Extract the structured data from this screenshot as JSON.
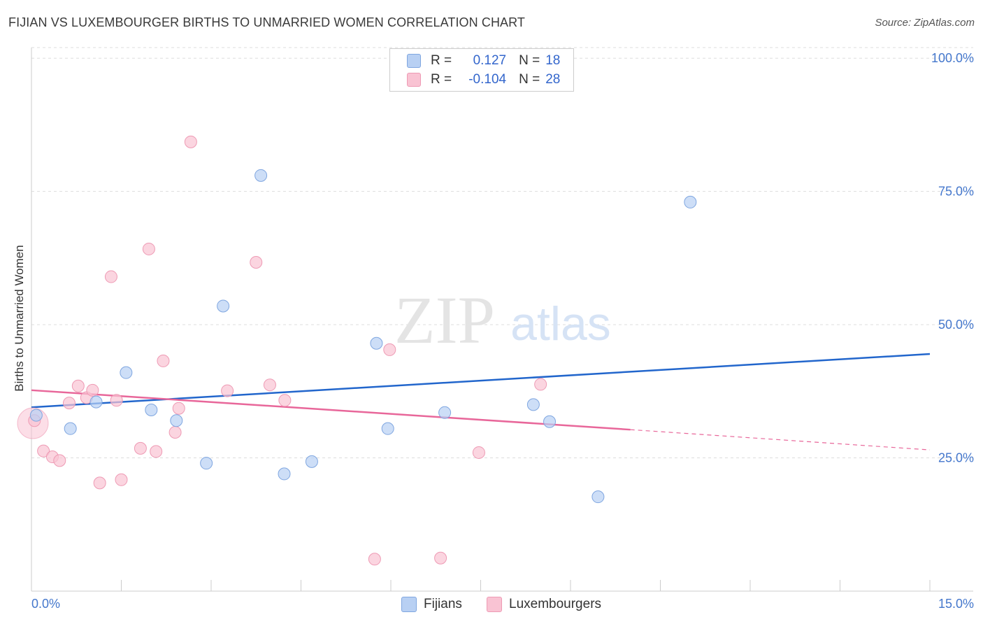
{
  "title": "FIJIAN VS LUXEMBOURGER BIRTHS TO UNMARRIED WOMEN CORRELATION CHART",
  "source": "Source: ZipAtlas.com",
  "watermark": {
    "zip": "ZIP",
    "atlas": "atlas"
  },
  "legend": {
    "r_label": "R =",
    "n_label": "N =",
    "fijians": {
      "r": "0.127",
      "n": "18"
    },
    "luxembourgers": {
      "r": "-0.104",
      "n": "28"
    }
  },
  "colors": {
    "fijians_fill": "#b8d0f3",
    "fijians_stroke": "#7fa6e0",
    "fijians_line": "#2266cc",
    "lux_fill": "#f9c3d3",
    "lux_stroke": "#ee9ab4",
    "lux_line": "#e8679a",
    "tick_text": "#4477cc"
  },
  "chart_data": {
    "type": "scatter",
    "title": "FIJIAN VS LUXEMBOURGER BIRTHS TO UNMARRIED WOMEN CORRELATION CHART",
    "xlabel": "",
    "ylabel": "Births to Unmarried Women",
    "xlim": [
      0,
      15
    ],
    "ylim": [
      0,
      102
    ],
    "x_tick_labels": [
      "0.0%",
      "15.0%"
    ],
    "y_ticks": [
      25,
      50,
      75,
      100
    ],
    "y_tick_labels": [
      "25.0%",
      "50.0%",
      "75.0%",
      "100.0%"
    ],
    "grid": true,
    "legend_position": "bottom-center",
    "series": [
      {
        "name": "Fijians",
        "r": 0.127,
        "n": 18,
        "points": [
          {
            "x": 0.08,
            "y": 33.0
          },
          {
            "x": 0.65,
            "y": 30.5
          },
          {
            "x": 1.08,
            "y": 35.5
          },
          {
            "x": 1.58,
            "y": 41.0
          },
          {
            "x": 2.0,
            "y": 34.0
          },
          {
            "x": 2.42,
            "y": 32.0
          },
          {
            "x": 2.92,
            "y": 24.0
          },
          {
            "x": 3.2,
            "y": 53.5
          },
          {
            "x": 3.83,
            "y": 78.0
          },
          {
            "x": 4.22,
            "y": 22.0
          },
          {
            "x": 4.68,
            "y": 24.3
          },
          {
            "x": 5.76,
            "y": 46.5
          },
          {
            "x": 5.95,
            "y": 30.5
          },
          {
            "x": 6.9,
            "y": 33.5
          },
          {
            "x": 8.38,
            "y": 35.0
          },
          {
            "x": 8.65,
            "y": 31.8
          },
          {
            "x": 9.46,
            "y": 17.7
          },
          {
            "x": 11.0,
            "y": 73.0
          }
        ],
        "trend": {
          "x": [
            0,
            15
          ],
          "y": [
            34.5,
            44.5
          ]
        }
      },
      {
        "name": "Luxembourgers",
        "r": -0.104,
        "n": 28,
        "points": [
          {
            "x": 0.05,
            "y": 32.0
          },
          {
            "x": 0.2,
            "y": 26.3
          },
          {
            "x": 0.35,
            "y": 25.2
          },
          {
            "x": 0.47,
            "y": 24.5
          },
          {
            "x": 0.63,
            "y": 35.3
          },
          {
            "x": 0.78,
            "y": 38.5
          },
          {
            "x": 0.92,
            "y": 36.3
          },
          {
            "x": 1.02,
            "y": 37.7
          },
          {
            "x": 1.14,
            "y": 20.3
          },
          {
            "x": 1.33,
            "y": 59.0
          },
          {
            "x": 1.42,
            "y": 35.8
          },
          {
            "x": 1.5,
            "y": 20.9
          },
          {
            "x": 1.82,
            "y": 26.8
          },
          {
            "x": 1.96,
            "y": 64.2
          },
          {
            "x": 2.08,
            "y": 26.2
          },
          {
            "x": 2.2,
            "y": 43.2
          },
          {
            "x": 2.4,
            "y": 29.8
          },
          {
            "x": 2.46,
            "y": 34.3
          },
          {
            "x": 2.66,
            "y": 84.3
          },
          {
            "x": 3.27,
            "y": 37.6
          },
          {
            "x": 3.75,
            "y": 61.7
          },
          {
            "x": 3.98,
            "y": 38.7
          },
          {
            "x": 4.23,
            "y": 35.8
          },
          {
            "x": 5.73,
            "y": 6.0
          },
          {
            "x": 5.98,
            "y": 45.3
          },
          {
            "x": 6.83,
            "y": 6.2
          },
          {
            "x": 7.47,
            "y": 26.0
          },
          {
            "x": 8.5,
            "y": 38.8
          }
        ],
        "trend": {
          "x": [
            0,
            10.0
          ],
          "y": [
            37.7,
            30.3
          ],
          "dashed_to": {
            "x": 15,
            "y": 26.5
          }
        }
      }
    ]
  },
  "bottom_legend": {
    "fijians": "Fijians",
    "luxembourgers": "Luxembourgers"
  }
}
